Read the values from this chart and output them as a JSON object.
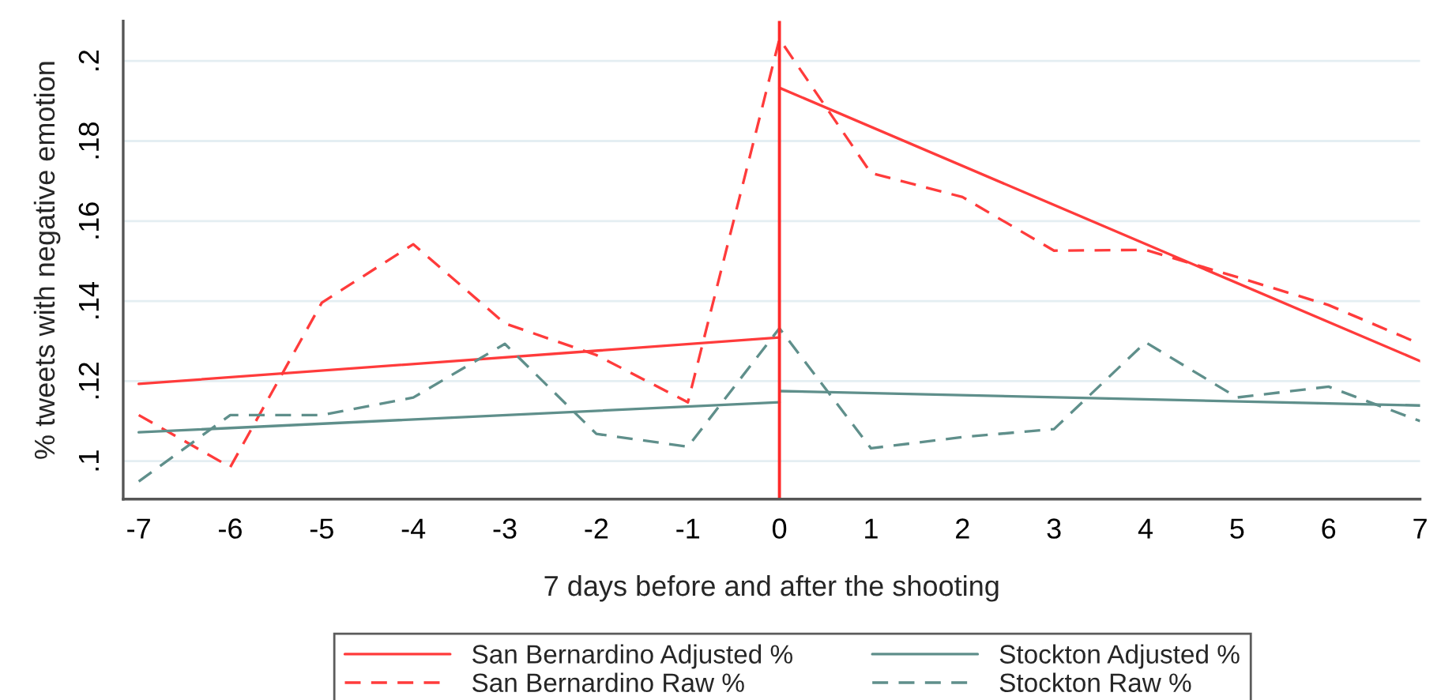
{
  "chart_data": {
    "type": "line",
    "xlabel": "7 days before and after the shooting",
    "ylabel": "% tweets with negative emotion",
    "xlim": [
      -7.17,
      7
    ],
    "xticks": [
      {
        "value": -7,
        "label": "-7"
      },
      {
        "value": -6,
        "label": "-6"
      },
      {
        "value": -5,
        "label": "-5"
      },
      {
        "value": -4,
        "label": "-4"
      },
      {
        "value": -3,
        "label": "-3"
      },
      {
        "value": -2,
        "label": "-2"
      },
      {
        "value": -1,
        "label": "-1"
      },
      0,
      1,
      2,
      3,
      4,
      5,
      6,
      7
    ],
    "ylim": [
      0.0905,
      0.21
    ],
    "yticks": [
      {
        "value": 0.1,
        "label": ".1"
      },
      {
        "value": 0.12,
        "label": ".12"
      },
      {
        "value": 0.14,
        "label": ".14"
      },
      {
        "value": 0.16,
        "label": ".16"
      },
      {
        "value": 0.18,
        "label": ".18"
      },
      {
        "value": 0.2,
        "label": ".2"
      }
    ],
    "grid": "y",
    "legend": "bottom",
    "marker": "none",
    "ref_lines": [
      {
        "axis": "x",
        "value": 0,
        "color": "#ff2a2a"
      }
    ],
    "series": [
      {
        "name": "San Bernardino Adjusted %",
        "color": "#ff3b3b",
        "line_style": "solid",
        "x": [
          -7,
          0
        ],
        "values": [
          0.1193,
          0.1309
        ]
      },
      {
        "color": "#ff3b3b",
        "line_style": "solid",
        "x": [
          0,
          7
        ],
        "values": [
          0.1933,
          0.125
        ]
      },
      {
        "name": "San Bernardino Raw %",
        "color": "#ff3b3b",
        "line_style": "dashed",
        "x": [
          -7,
          -6,
          -5,
          -4,
          -3,
          -2,
          -1,
          0,
          1,
          2,
          3,
          4,
          5,
          6,
          7
        ],
        "values": [
          0.1115,
          0.0985,
          0.1396,
          0.1542,
          0.1344,
          0.1265,
          0.1147,
          0.2055,
          0.172,
          0.166,
          0.1526,
          0.1528,
          0.146,
          0.139,
          0.1293
        ]
      },
      {
        "name": "Stockton Adjusted %",
        "color": "#5f8f8b",
        "line_style": "solid",
        "x": [
          -7,
          0
        ],
        "values": [
          0.1072,
          0.1147
        ]
      },
      {
        "color": "#5f8f8b",
        "line_style": "solid",
        "x": [
          0,
          7
        ],
        "values": [
          0.1175,
          0.1139
        ]
      },
      {
        "name": "Stockton Raw %",
        "color": "#5f8f8b",
        "line_style": "dashed",
        "x": [
          -7,
          -6,
          -5,
          -4,
          -3,
          -2,
          -1,
          0,
          1,
          2,
          3,
          4,
          5,
          6,
          7
        ],
        "values": [
          0.0949,
          0.1115,
          0.1115,
          0.1159,
          0.1293,
          0.1068,
          0.1036,
          0.1332,
          0.1032,
          0.106,
          0.108,
          0.1297,
          0.1159,
          0.1186,
          0.11
        ]
      }
    ]
  }
}
